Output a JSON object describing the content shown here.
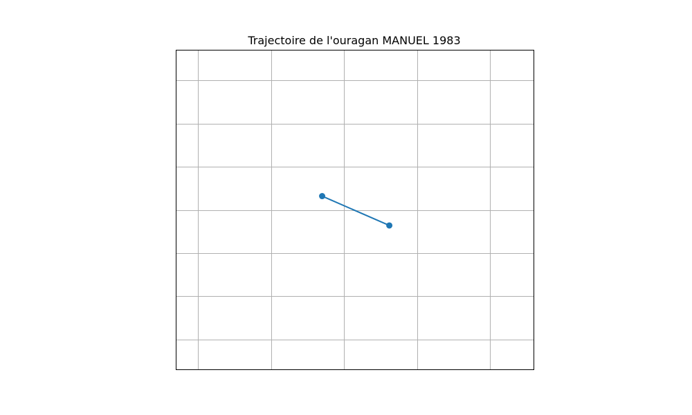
{
  "chart_data": {
    "type": "line",
    "title": "Trajectoire de l'ouragan MANUEL 1983",
    "xlabel": "",
    "ylabel": "",
    "xlim": [
      -2.6,
      2.3
    ],
    "ylim": [
      -1.85,
      1.85
    ],
    "grid": true,
    "grid_x": [
      -2.3,
      -1.3,
      -0.3,
      0.7,
      1.7
    ],
    "grid_y": [
      1.5,
      1.0,
      0.5,
      0.0,
      -0.5,
      -1.0,
      -1.5
    ],
    "series": [
      {
        "x": [
          -0.6,
          0.32
        ],
        "y": [
          0.16,
          -0.18
        ],
        "marker": "circle"
      }
    ],
    "colors": {
      "line": "#1f77b4",
      "grid": "#b0b0b0",
      "axes": "#000000"
    }
  }
}
